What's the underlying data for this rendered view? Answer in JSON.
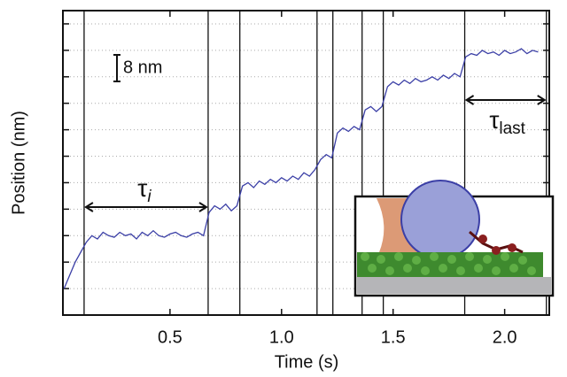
{
  "chart_data": {
    "type": "line",
    "xlabel": "Time (s)",
    "ylabel": "Position (nm)",
    "xlim": [
      0.02,
      2.2
    ],
    "ylim": [
      0,
      92
    ],
    "xticks": [
      {
        "value": 0.5,
        "label": "0.5"
      },
      {
        "value": 1.0,
        "label": "1.0"
      },
      {
        "value": 1.5,
        "label": "1.5"
      },
      {
        "value": 2.0,
        "label": "2.0"
      }
    ],
    "yticks": [
      8,
      16,
      24,
      32,
      40,
      48,
      56,
      64,
      72,
      80,
      88
    ],
    "grid": true,
    "step_times": [
      0.115,
      0.671,
      0.813,
      1.159,
      1.23,
      1.361,
      1.456,
      1.821,
      2.187
    ],
    "x": [
      0.025,
      0.05,
      0.075,
      0.1,
      0.125,
      0.15,
      0.175,
      0.2,
      0.225,
      0.25,
      0.275,
      0.3,
      0.325,
      0.35,
      0.375,
      0.4,
      0.425,
      0.45,
      0.475,
      0.5,
      0.525,
      0.55,
      0.575,
      0.6,
      0.625,
      0.65,
      0.675,
      0.7,
      0.725,
      0.75,
      0.775,
      0.8,
      0.825,
      0.85,
      0.875,
      0.9,
      0.925,
      0.95,
      0.975,
      1.0,
      1.025,
      1.05,
      1.075,
      1.1,
      1.125,
      1.15,
      1.175,
      1.2,
      1.225,
      1.25,
      1.275,
      1.3,
      1.325,
      1.35,
      1.375,
      1.4,
      1.425,
      1.45,
      1.475,
      1.5,
      1.525,
      1.55,
      1.575,
      1.6,
      1.625,
      1.65,
      1.675,
      1.7,
      1.725,
      1.75,
      1.775,
      1.8,
      1.825,
      1.85,
      1.875,
      1.9,
      1.925,
      1.95,
      1.975,
      2.0,
      2.025,
      2.05,
      2.075,
      2.1,
      2.125,
      2.15
    ],
    "series": [
      {
        "color": "#3b3fa6",
        "values": [
          8,
          12,
          16,
          19,
          22,
          24,
          23,
          25,
          24,
          23.5,
          25,
          24,
          24.5,
          23,
          25,
          24,
          25.5,
          24,
          23.5,
          24.5,
          25,
          24,
          23.5,
          24.5,
          25,
          24,
          31,
          33,
          32,
          33.5,
          31.5,
          33,
          39,
          40,
          38.5,
          40.5,
          39.5,
          41,
          40,
          41.5,
          40.5,
          42,
          41,
          43,
          42,
          44,
          47,
          48.5,
          47.5,
          55,
          56.5,
          55.5,
          57,
          56,
          62,
          63,
          61.5,
          63,
          69,
          70.5,
          69.5,
          71,
          70,
          71.5,
          70.5,
          71,
          72,
          71,
          72.5,
          71.5,
          73,
          72,
          78,
          79,
          78.5,
          80,
          79,
          79.5,
          78.5,
          80,
          79,
          79.5,
          80.5,
          79,
          80,
          79.5
        ]
      }
    ],
    "annotations": [
      {
        "text": "8 nm"
      },
      {
        "text": "τ",
        "subscript": "i"
      },
      {
        "text": "τ",
        "subscript": "last"
      }
    ]
  }
}
